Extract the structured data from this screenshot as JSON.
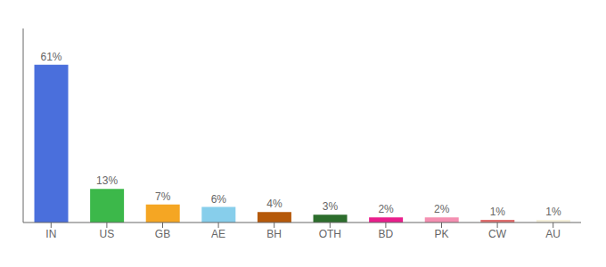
{
  "chart_data": {
    "type": "bar",
    "categories": [
      "IN",
      "US",
      "GB",
      "AE",
      "BH",
      "OTH",
      "BD",
      "PK",
      "CW",
      "AU"
    ],
    "values": [
      61,
      13,
      7,
      6,
      4,
      3,
      2,
      2,
      1,
      1
    ],
    "value_labels": [
      "61%",
      "13%",
      "7%",
      "6%",
      "4%",
      "3%",
      "2%",
      "2%",
      "1%",
      "1%"
    ],
    "data_labels": true,
    "colors": [
      "#4a6fdc",
      "#3cb84a",
      "#f5a623",
      "#87ceeb",
      "#b5590a",
      "#2d6e2d",
      "#e91e8c",
      "#f48fb1",
      "#e07070",
      "#f5f0dc"
    ],
    "ylim": [
      0,
      75
    ],
    "tick_labels": "x",
    "grid": false
  }
}
